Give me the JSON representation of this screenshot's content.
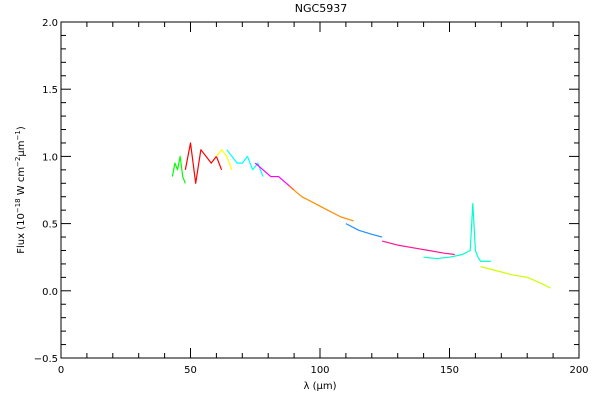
{
  "chart_data": {
    "type": "line",
    "title": "NGC5937",
    "xlabel": "λ (μm)",
    "ylabel_parts": {
      "prefix": "Flux (10",
      "exp1": "−18",
      "mid": " W cm",
      "exp2": "−2",
      "mid2": "μm",
      "exp3": "−1",
      "suffix": ")"
    },
    "xlim": [
      0,
      200
    ],
    "ylim": [
      -0.5,
      2.0
    ],
    "x_ticks": [
      0,
      50,
      100,
      150,
      200
    ],
    "y_ticks": [
      -0.5,
      0.0,
      0.5,
      1.0,
      1.5,
      2.0
    ],
    "x_tick_labels": [
      "0",
      "50",
      "100",
      "150",
      "200"
    ],
    "y_tick_labels": [
      "−0.5",
      "0.0",
      "0.5",
      "1.0",
      "1.5",
      "2.0"
    ],
    "grid": false,
    "series": [
      {
        "color": "#00ff00",
        "x": [
          43,
          44,
          45,
          46,
          47,
          48
        ],
        "y": [
          0.85,
          0.95,
          0.9,
          1.0,
          0.85,
          0.8
        ]
      },
      {
        "color": "#ff0000",
        "x": [
          48,
          50,
          52,
          54,
          56,
          58,
          60,
          62
        ],
        "y": [
          0.9,
          1.1,
          0.8,
          1.05,
          1.0,
          0.95,
          1.0,
          0.9
        ]
      },
      {
        "color": "#ffff00",
        "x": [
          60,
          62,
          64,
          66
        ],
        "y": [
          1.0,
          1.05,
          1.0,
          0.9
        ]
      },
      {
        "color": "#00ffff",
        "x": [
          64,
          66,
          68,
          70,
          72,
          74,
          76,
          78
        ],
        "y": [
          1.05,
          1.0,
          0.95,
          0.95,
          1.0,
          0.9,
          0.95,
          0.85
        ]
      },
      {
        "color": "#ff00ff",
        "x": [
          75,
          78,
          81,
          84,
          87,
          90
        ],
        "y": [
          0.95,
          0.9,
          0.85,
          0.85,
          0.8,
          0.75
        ]
      },
      {
        "color": "#ff8c00",
        "x": [
          88,
          93,
          98,
          103,
          108,
          113
        ],
        "y": [
          0.78,
          0.7,
          0.65,
          0.6,
          0.55,
          0.52
        ]
      },
      {
        "color": "#1e90ff",
        "x": [
          110,
          115,
          120,
          124
        ],
        "y": [
          0.5,
          0.45,
          0.42,
          0.4
        ]
      },
      {
        "color": "#ff1493",
        "x": [
          124,
          130,
          136,
          142,
          148,
          152
        ],
        "y": [
          0.37,
          0.34,
          0.32,
          0.3,
          0.28,
          0.27
        ]
      },
      {
        "color": "#00ffcc",
        "x": [
          140,
          145,
          150,
          155,
          158,
          159,
          160,
          161,
          162,
          166
        ],
        "y": [
          0.25,
          0.24,
          0.25,
          0.27,
          0.3,
          0.65,
          0.3,
          0.25,
          0.22,
          0.22
        ]
      },
      {
        "color": "#ccff00",
        "x": [
          162,
          168,
          174,
          180,
          186,
          189
        ],
        "y": [
          0.18,
          0.15,
          0.12,
          0.1,
          0.05,
          0.02
        ]
      }
    ]
  }
}
